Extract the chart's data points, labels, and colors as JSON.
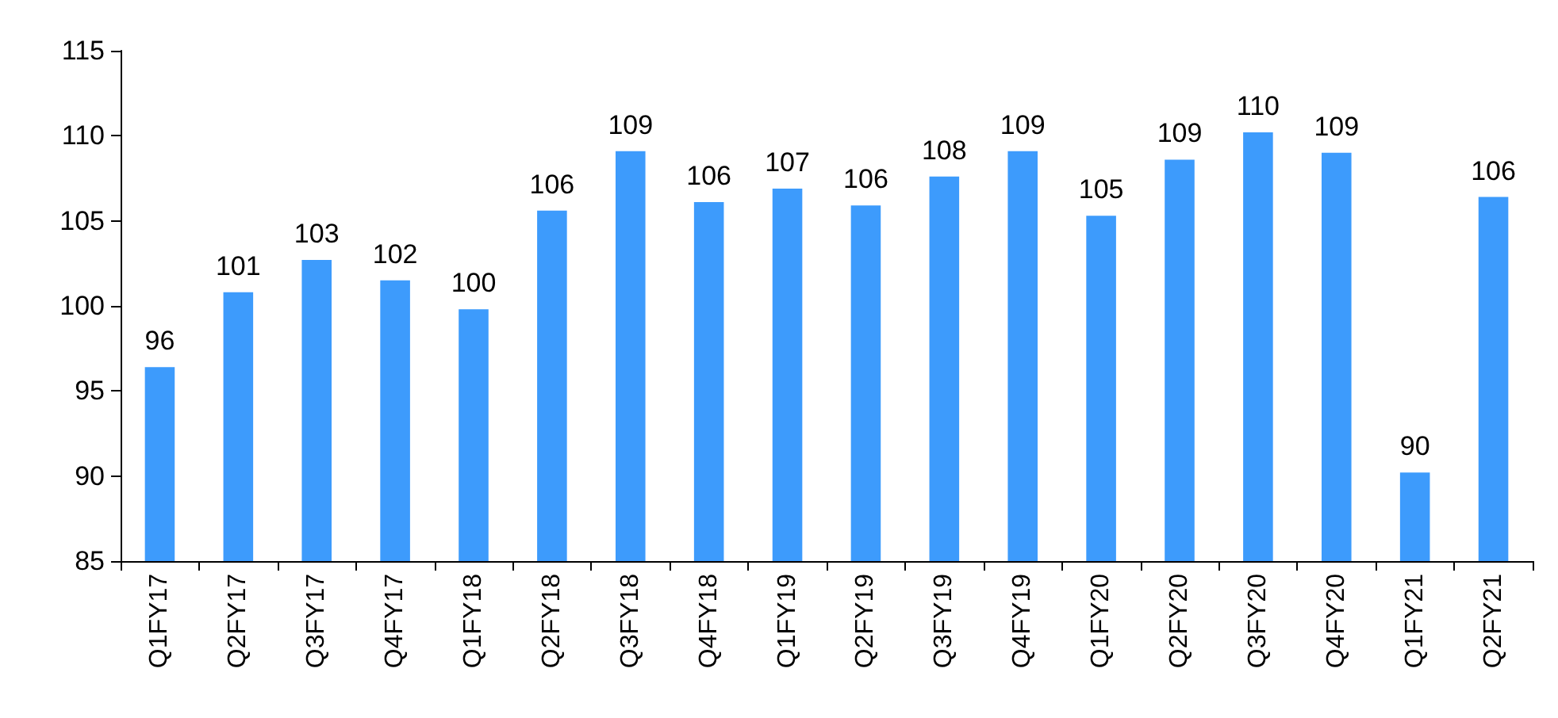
{
  "chart_data": {
    "type": "bar",
    "categories": [
      "Q1FY17",
      "Q2FY17",
      "Q3FY17",
      "Q4FY17",
      "Q1FY18",
      "Q2FY18",
      "Q3FY18",
      "Q4FY18",
      "Q1FY19",
      "Q2FY19",
      "Q3FY19",
      "Q4FY19",
      "Q1FY20",
      "Q2FY20",
      "Q3FY20",
      "Q4FY20",
      "Q1FY21",
      "Q2FY21"
    ],
    "values": [
      96.4,
      100.8,
      102.7,
      101.5,
      99.8,
      105.6,
      109.1,
      106.1,
      106.9,
      105.9,
      107.6,
      109.1,
      105.3,
      108.6,
      110.2,
      109.0,
      90.2,
      106.4
    ],
    "value_labels": [
      "96",
      "101",
      "103",
      "102",
      "100",
      "106",
      "109",
      "106",
      "107",
      "106",
      "108",
      "109",
      "105",
      "109",
      "110",
      "109",
      "90",
      "106"
    ],
    "color": "#3d9bfc",
    "ylim": [
      85,
      115
    ],
    "yticks": [
      85,
      90,
      95,
      100,
      105,
      110,
      115
    ],
    "grid": false
  }
}
